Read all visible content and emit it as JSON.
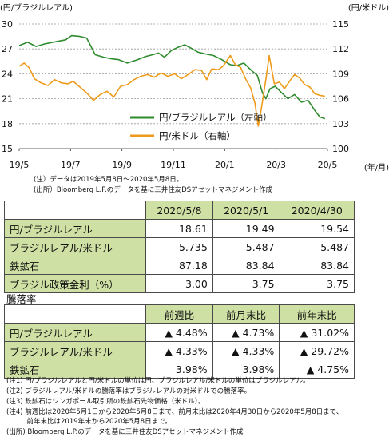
{
  "chart_data": {
    "type": "line",
    "left_unit_label": "(円/ブラジルレアル)",
    "right_unit_label": "(円/米ドル)",
    "x_axis_unit_label": "(年/月)",
    "x_tick_labels": [
      "19/5",
      "19/7",
      "19/9",
      "19/11",
      "20/1",
      "20/3",
      "20/5"
    ],
    "x_range": [
      0,
      365
    ],
    "y_left": {
      "range": [
        15,
        30
      ],
      "ticks": [
        "15",
        "18",
        "21",
        "24",
        "27",
        "30"
      ]
    },
    "y_right": {
      "range": [
        100,
        115
      ],
      "ticks": [
        "100",
        "103",
        "106",
        "109",
        "112",
        "115"
      ]
    },
    "legend": {
      "placement": "bottom-right",
      "items": [
        "円/ブラジルレアル（左軸）",
        "円/米ドル（右軸）"
      ]
    },
    "colors": {
      "brl": "#2e8b2e",
      "usd": "#ee9a1a"
    },
    "series": [
      {
        "name": "円/ブラジルレアル（左軸）",
        "axis": "left",
        "points": [
          [
            0,
            27.4
          ],
          [
            10,
            27.8
          ],
          [
            20,
            27.3
          ],
          [
            30,
            27.6
          ],
          [
            45,
            27.9
          ],
          [
            55,
            28.1
          ],
          [
            62,
            28.6
          ],
          [
            72,
            28.5
          ],
          [
            80,
            28.3
          ],
          [
            90,
            26.3
          ],
          [
            100,
            26.0
          ],
          [
            110,
            25.8
          ],
          [
            118,
            25.7
          ],
          [
            128,
            25.3
          ],
          [
            140,
            25.7
          ],
          [
            150,
            26.1
          ],
          [
            158,
            26.3
          ],
          [
            165,
            26.5
          ],
          [
            172,
            26.0
          ],
          [
            180,
            26.8
          ],
          [
            188,
            27.2
          ],
          [
            196,
            27.5
          ],
          [
            205,
            27.0
          ],
          [
            212,
            26.6
          ],
          [
            220,
            26.4
          ],
          [
            230,
            26.2
          ],
          [
            240,
            25.7
          ],
          [
            250,
            25.1
          ],
          [
            258,
            25.0
          ],
          [
            266,
            25.3
          ],
          [
            275,
            24.4
          ],
          [
            282,
            23.8
          ],
          [
            288,
            21.7
          ],
          [
            292,
            21.0
          ],
          [
            297,
            22.2
          ],
          [
            303,
            22.5
          ],
          [
            310,
            21.8
          ],
          [
            318,
            21.0
          ],
          [
            326,
            21.5
          ],
          [
            334,
            20.6
          ],
          [
            342,
            20.8
          ],
          [
            350,
            19.6
          ],
          [
            356,
            18.8
          ],
          [
            362,
            18.6
          ]
        ]
      },
      {
        "name": "円/米ドル（右軸）",
        "axis": "right",
        "points": [
          [
            0,
            109.9
          ],
          [
            6,
            110.3
          ],
          [
            12,
            109.7
          ],
          [
            18,
            108.4
          ],
          [
            26,
            107.9
          ],
          [
            34,
            107.6
          ],
          [
            42,
            108.3
          ],
          [
            50,
            107.9
          ],
          [
            58,
            107.8
          ],
          [
            64,
            108.1
          ],
          [
            72,
            107.4
          ],
          [
            80,
            106.7
          ],
          [
            88,
            105.8
          ],
          [
            96,
            106.5
          ],
          [
            104,
            106.9
          ],
          [
            112,
            106.2
          ],
          [
            120,
            107.5
          ],
          [
            128,
            107.7
          ],
          [
            136,
            108.3
          ],
          [
            144,
            108.7
          ],
          [
            152,
            108.9
          ],
          [
            160,
            108.6
          ],
          [
            168,
            109.1
          ],
          [
            176,
            108.7
          ],
          [
            184,
            109.0
          ],
          [
            192,
            108.4
          ],
          [
            200,
            108.9
          ],
          [
            208,
            109.5
          ],
          [
            216,
            109.4
          ],
          [
            222,
            108.3
          ],
          [
            228,
            109.6
          ],
          [
            236,
            109.5
          ],
          [
            242,
            110.0
          ],
          [
            250,
            111.2
          ],
          [
            256,
            110.1
          ],
          [
            262,
            109.8
          ],
          [
            268,
            108.4
          ],
          [
            274,
            107.3
          ],
          [
            279,
            105.5
          ],
          [
            283,
            102.7
          ],
          [
            287,
            105.0
          ],
          [
            292,
            108.3
          ],
          [
            296,
            111.2
          ],
          [
            302,
            107.8
          ],
          [
            308,
            108.0
          ],
          [
            314,
            107.2
          ],
          [
            320,
            108.1
          ],
          [
            326,
            108.9
          ],
          [
            332,
            108.5
          ],
          [
            338,
            107.7
          ],
          [
            344,
            107.4
          ],
          [
            350,
            106.6
          ],
          [
            356,
            106.4
          ],
          [
            362,
            106.3
          ]
        ]
      }
    ]
  },
  "chart_notes": [
    "(注）データは2019年5月8日～2020年5月8日。",
    "(出所）Bloomberg L.P.のデータを基に三井住友DSアセットマネジメント作成"
  ],
  "levels_table": {
    "headers": [
      "2020/5/8",
      "2020/5/1",
      "2020/4/30"
    ],
    "rows": [
      {
        "label": "円/ブラジルレアル",
        "values": [
          "18.61",
          "19.49",
          "19.54"
        ]
      },
      {
        "label": "ブラジルレアル/米ドル",
        "values": [
          "5.735",
          "5.487",
          "5.487"
        ]
      },
      {
        "label": "鉄鉱石",
        "values": [
          "87.18",
          "83.84",
          "83.84"
        ]
      },
      {
        "label": "ブラジル政策金利（%）",
        "values": [
          "3.00",
          "3.75",
          "3.75"
        ]
      }
    ]
  },
  "change_title": "騰落率",
  "change_table": {
    "headers": [
      "前週比",
      "前月末比",
      "前年末比"
    ],
    "rows": [
      {
        "label": "円/ブラジルレアル",
        "values": [
          "▲ 4.48%",
          "▲ 4.73%",
          "▲ 31.02%"
        ]
      },
      {
        "label": "ブラジルレアル/米ドル",
        "values": [
          "▲ 4.33%",
          "▲ 4.33%",
          "▲ 29.72%"
        ]
      },
      {
        "label": "鉄鉱石",
        "values": [
          "3.98%",
          "3.98%",
          "▲ 4.75%"
        ]
      }
    ]
  },
  "footnotes": [
    "(注1) 円/ブラジルレアルと円/米ドルの単位は円、ブラジルレアル/米ドルの単位はブラジルレアル。",
    "(注2) ブラジルレアル/米ドルの騰落率はブラジルレアルの対米ドルでの騰落率。",
    "(注3) 鉄鉱石はシンガポール取引所の鉄鉱石先物価格（米ドル）。",
    "(注4) 前週比は2020年5月1日から2020年5月8日まで、前月末比は2020年4月30日から2020年5月8日まで、",
    "　　　前年末比は2019年末から2020年5月8日まで。",
    "(出所) Bloomberg L.P.のデータを基に三井住友DSアセットマネジメント作成"
  ]
}
